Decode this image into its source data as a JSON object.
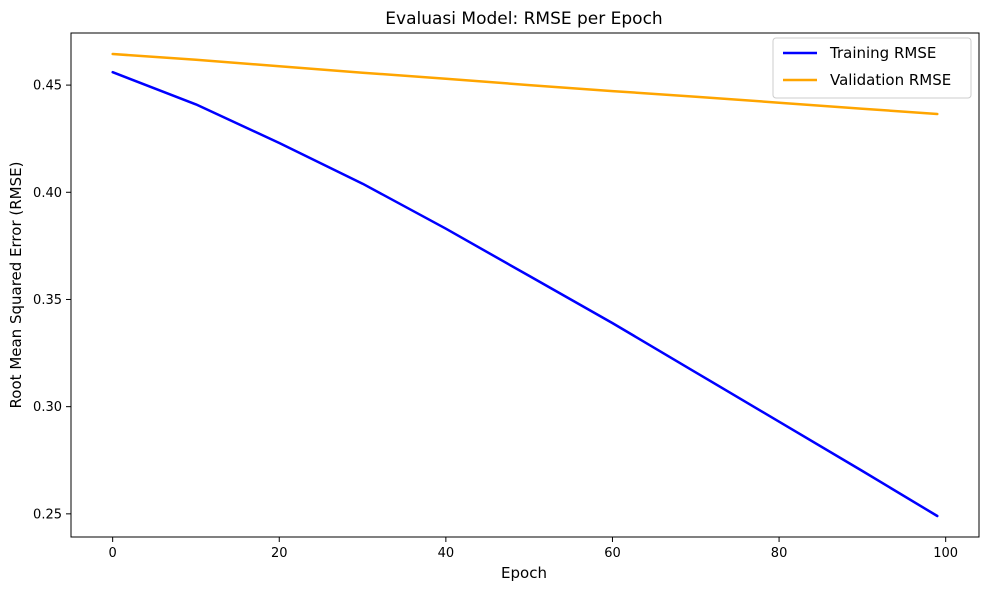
{
  "chart_data": {
    "type": "line",
    "title": "Evaluasi Model: RMSE per Epoch",
    "xlabel": "Epoch",
    "ylabel": "Root Mean Squared Error (RMSE)",
    "xlim": [
      -5,
      104
    ],
    "ylim": [
      0.2392,
      0.4743
    ],
    "xticks": [
      0,
      20,
      40,
      60,
      80,
      100
    ],
    "xtick_labels": [
      "0",
      "20",
      "40",
      "60",
      "80",
      "100"
    ],
    "yticks": [
      0.25,
      0.3,
      0.35,
      0.4,
      0.45
    ],
    "ytick_labels": [
      "0.25",
      "0.30",
      "0.35",
      "0.40",
      "0.45"
    ],
    "grid": false,
    "legend_position": "top-right",
    "x": [
      0,
      10,
      20,
      30,
      40,
      50,
      60,
      70,
      80,
      90,
      99
    ],
    "series": [
      {
        "name": "Training RMSE",
        "color": "#0000ff",
        "values": [
          0.456,
          0.441,
          0.423,
          0.404,
          0.383,
          0.361,
          0.339,
          0.316,
          0.293,
          0.27,
          0.249
        ]
      },
      {
        "name": "Validation RMSE",
        "color": "#ffa500",
        "values": [
          0.4645,
          0.4618,
          0.4588,
          0.4558,
          0.453,
          0.45,
          0.4472,
          0.4446,
          0.4418,
          0.439,
          0.4365
        ]
      }
    ]
  }
}
